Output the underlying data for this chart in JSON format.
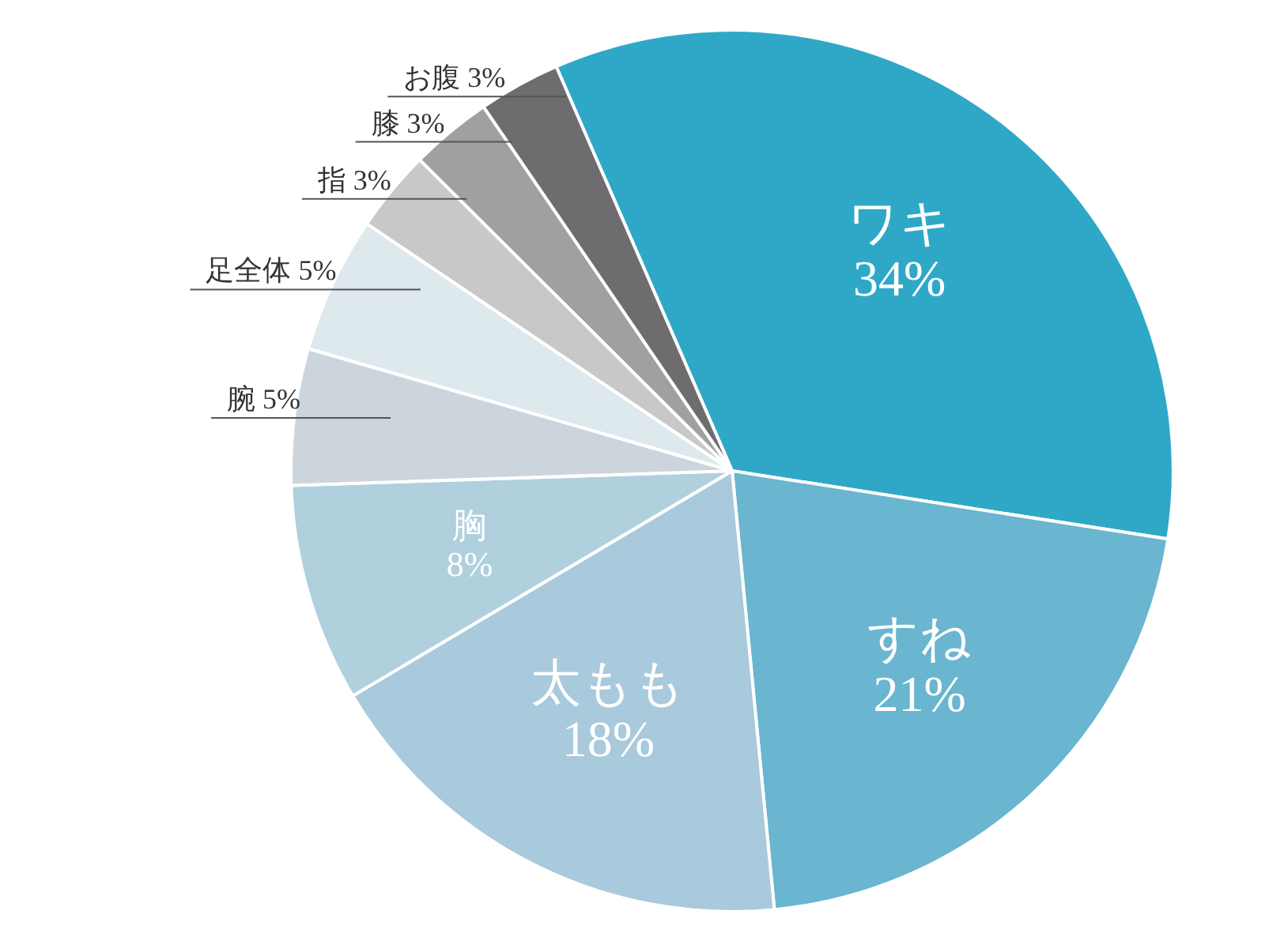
{
  "chart_data": {
    "type": "pie",
    "categories": [
      "ワキ",
      "すね",
      "太もも",
      "胸",
      "腕",
      "足全体",
      "指",
      "膝",
      "お腹"
    ],
    "values": [
      34,
      21,
      18,
      8,
      5,
      5,
      3,
      3,
      3
    ],
    "value_labels": [
      "34%",
      "21%",
      "18%",
      "8%",
      "5%",
      "5%",
      "3%",
      "3%",
      "3%"
    ],
    "colors": [
      "#2fa8c8",
      "#6ab5cf",
      "#a9c9dc",
      "#b0d0de",
      "#cdd5dc",
      "#dde9ec",
      "#c8c8c8",
      "#a0a0a0",
      "#6e6c6e"
    ],
    "legend": false
  }
}
